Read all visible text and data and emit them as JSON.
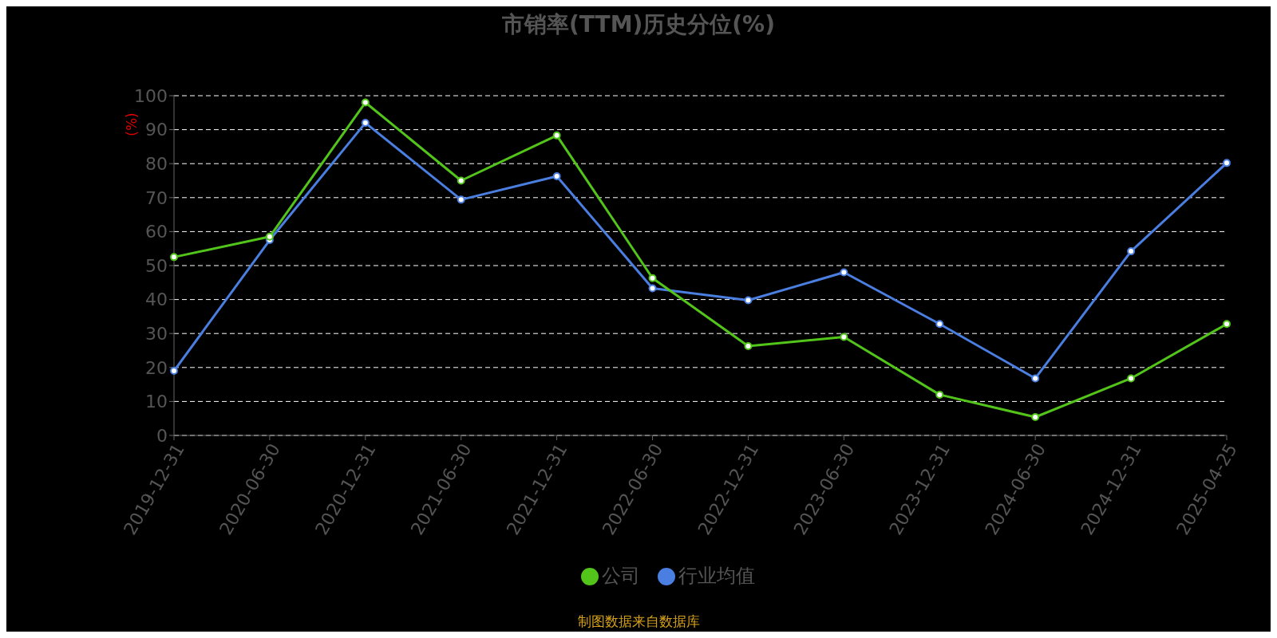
{
  "chart_data": {
    "type": "line",
    "title": "市销率(TTM)历史分位(%)",
    "ylabel": "(%)",
    "categories": [
      "2019-12-31",
      "2020-06-30",
      "2020-12-31",
      "2021-06-30",
      "2021-12-31",
      "2022-06-30",
      "2022-12-31",
      "2023-06-30",
      "2023-12-31",
      "2024-06-30",
      "2024-12-31",
      "2025-04-25"
    ],
    "series": [
      {
        "name": "公司",
        "color": "#52c41a",
        "values": [
          52.5,
          58.5,
          98,
          75,
          88.3,
          46.3,
          26.3,
          29,
          12,
          5.4,
          16.8,
          32.8
        ]
      },
      {
        "name": "行业均值",
        "color": "#4a7ee0",
        "values": [
          19,
          57.5,
          92,
          69.4,
          76.3,
          43.3,
          39.8,
          48,
          32.8,
          16.8,
          54.2,
          80.2
        ]
      }
    ],
    "ylim": [
      0,
      100
    ],
    "yticks": [
      0,
      10,
      20,
      30,
      40,
      50,
      60,
      70,
      80,
      90,
      100
    ],
    "grid": "y",
    "legend": "bottom",
    "marker": "circle",
    "line_style": "solid",
    "annotations": [
      "制图数据来自数据库"
    ]
  }
}
